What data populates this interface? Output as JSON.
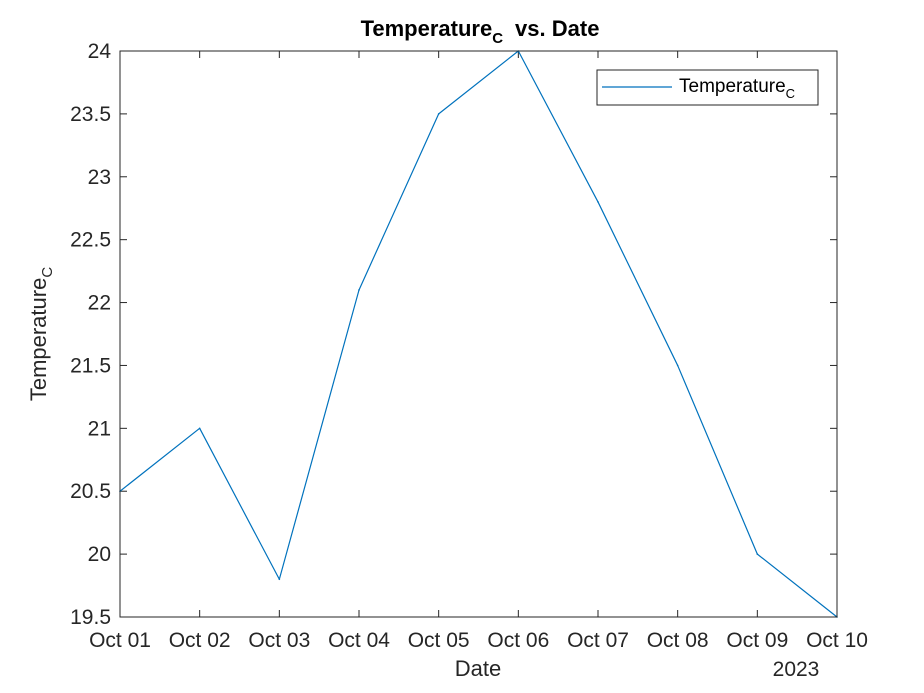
{
  "chart_data": {
    "type": "line",
    "title": {
      "main": "Temperature",
      "sub": "C",
      "suffix": "vs.  Date"
    },
    "xlabel": "Date",
    "xlabel_secondary": "2023",
    "ylabel": {
      "main": "Temperature",
      "sub": "C"
    },
    "x": [
      "Oct 01",
      "Oct 02",
      "Oct 03",
      "Oct 04",
      "Oct 05",
      "Oct 06",
      "Oct 07",
      "Oct 08",
      "Oct 09",
      "Oct 10"
    ],
    "xlim": [
      "Oct 01",
      "Oct 10"
    ],
    "ylim": [
      19.5,
      24
    ],
    "yticks": [
      19.5,
      20,
      20.5,
      21,
      21.5,
      22,
      22.5,
      23,
      23.5,
      24
    ],
    "ytick_labels": [
      "19.5",
      "20",
      "20.5",
      "21",
      "21.5",
      "22",
      "22.5",
      "23",
      "23.5",
      "24"
    ],
    "grid": false,
    "legend_position": "top-right",
    "series": [
      {
        "name": "Temperature",
        "name_sub": "C",
        "color": "#0072BD",
        "values": [
          20.5,
          21.0,
          19.8,
          22.1,
          23.5,
          24.0,
          22.8,
          21.5,
          20.0,
          19.5
        ]
      }
    ]
  }
}
